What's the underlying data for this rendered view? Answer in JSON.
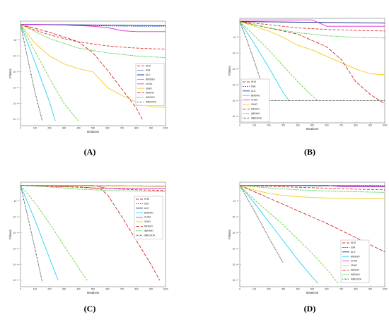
{
  "figure": {
    "panel_labels": [
      "(A)",
      "(B)",
      "(C)",
      "(D)"
    ]
  },
  "colors": {
    "HHO": "#e0312a",
    "SSA": "#6ad33a",
    "ALO": "#4466cc",
    "BMGWO": "#1f2a8c",
    "CHOA": "#dd33dd",
    "IGWO": "#f2cc1a",
    "MEHHO": "#cc2a2a",
    "IMEHHO": "#2bcf2b",
    "IMBCHOA": "#222222",
    "CYAN": "#22d4f0"
  },
  "chart_data": [
    {
      "panel": "(A)",
      "type": "line",
      "xlabel": "Iterations",
      "ylabel": "Fitness",
      "xlim": [
        0,
        1000
      ],
      "ylim_log10": [
        -320,
        10
      ],
      "y_scale": "log",
      "x_ticks": [
        "0",
        "100",
        "200",
        "300",
        "400",
        "500",
        "600",
        "700",
        "800",
        "900",
        "1000"
      ],
      "y_ticks": [
        "10⁻⁵⁰",
        "10⁻¹⁰⁰",
        "10⁻¹⁵⁰",
        "10⁻²⁰⁰",
        "10⁻²⁵⁰",
        "10⁻³⁰⁰"
      ],
      "legend_position": "right-middle",
      "legend": [
        "HHO",
        "SSA",
        "ALO",
        "BMGWO",
        "CHOA",
        "IGWO",
        "MEHHO",
        "IMEHHO",
        "IMBCHOA"
      ],
      "series": [
        {
          "name": "HHO",
          "color_key": "HHO",
          "dash": "4,2",
          "x": [
            0,
            100,
            200,
            300,
            400,
            500,
            600,
            700,
            800,
            900,
            1000
          ],
          "y": [
            0,
            -18,
            -33,
            -45,
            -55,
            -62,
            -68,
            -72,
            -75,
            -77,
            -78
          ]
        },
        {
          "name": "SSA",
          "color_key": "ALO",
          "dash": "2,1",
          "x": [
            0,
            200,
            400,
            600,
            800,
            1000
          ],
          "y": [
            0,
            -1,
            -3,
            -5,
            -6,
            -6
          ]
        },
        {
          "name": "ALO",
          "color_key": "BMGWO",
          "dash": "",
          "x": [
            0,
            1000
          ],
          "y": [
            0,
            -4
          ]
        },
        {
          "name": "CHOA",
          "color_key": "CHOA",
          "dash": "",
          "x": [
            0,
            300,
            500,
            600,
            700,
            800,
            1000
          ],
          "y": [
            0,
            -2,
            -6,
            -10,
            -20,
            -23,
            -23
          ]
        },
        {
          "name": "IGWO",
          "color_key": "IGWO",
          "dash": "",
          "x": [
            0,
            100,
            200,
            300,
            400,
            500,
            600,
            700,
            800,
            900,
            1000
          ],
          "y": [
            0,
            -60,
            -100,
            -125,
            -140,
            -150,
            -200,
            -225,
            -245,
            -260,
            -262
          ]
        },
        {
          "name": "MEHHO",
          "color_key": "MEHHO",
          "dash": "5,2",
          "x": [
            0,
            200,
            400,
            500,
            600,
            700,
            800,
            840
          ],
          "y": [
            0,
            -25,
            -55,
            -90,
            -145,
            -205,
            -265,
            -300
          ]
        },
        {
          "name": "IMEHHO",
          "color_key": "IMEHHO",
          "dash": "1.5,1",
          "x": [
            0,
            200,
            400,
            600,
            800,
            1000
          ],
          "y": [
            0,
            -45,
            -75,
            -90,
            -100,
            -105
          ]
        },
        {
          "name": "CYAN",
          "color_key": "CYAN",
          "dash": "",
          "x": [
            0,
            100,
            200,
            240
          ],
          "y": [
            0,
            -120,
            -245,
            -305
          ]
        },
        {
          "name": "IMBCHOA",
          "color_key": "IMBCHOA",
          "dash": "1,1",
          "x": [
            0,
            50,
            100,
            150
          ],
          "y": [
            0,
            -110,
            -215,
            -305
          ]
        },
        {
          "name": "GREEN",
          "color_key": "SSA",
          "dash": "3,1.5",
          "x": [
            0,
            100,
            200,
            300,
            400
          ],
          "y": [
            0,
            -85,
            -170,
            -250,
            -305
          ]
        }
      ]
    },
    {
      "panel": "(B)",
      "type": "line",
      "xlabel": "Iterations",
      "ylabel": "Fitness",
      "xlim": [
        0,
        1000
      ],
      "ylim_log10": [
        -320,
        10
      ],
      "y_scale": "log",
      "x_ticks": [
        "0",
        "100",
        "200",
        "300",
        "400",
        "500",
        "600",
        "700",
        "800",
        "900",
        "1000"
      ],
      "y_ticks": [
        "10⁻⁵⁰",
        "10⁻¹⁰⁰",
        "10⁻¹⁵⁰",
        "10⁻²⁰⁰",
        "10⁻²⁵⁰",
        "10⁻³⁰⁰"
      ],
      "legend_position": "bottom-left",
      "legend": [
        "HHO",
        "SSA",
        "ALO",
        "BMGWO",
        "CHOA",
        "IGWO",
        "MEHHO",
        "IMEHHO",
        "IMBCHOA"
      ],
      "series": [
        {
          "name": "HHO",
          "color_key": "HHO",
          "dash": "4,2",
          "x": [
            0,
            200,
            400,
            600,
            800,
            1000
          ],
          "y": [
            0,
            -10,
            -20,
            -25,
            -28,
            -30
          ]
        },
        {
          "name": "SSA",
          "color_key": "ALO",
          "dash": "2,1",
          "x": [
            0,
            1000
          ],
          "y": [
            0,
            -5
          ]
        },
        {
          "name": "ALO",
          "color_key": "BMGWO",
          "dash": "",
          "x": [
            0,
            1000
          ],
          "y": [
            0,
            -5
          ]
        },
        {
          "name": "CHOA",
          "color_key": "CHOA",
          "dash": "",
          "x": [
            0,
            500,
            600,
            1000
          ],
          "y": [
            5,
            5,
            -15,
            -15
          ]
        },
        {
          "name": "IGWO",
          "color_key": "IGWO",
          "dash": "",
          "x": [
            0,
            100,
            200,
            300,
            400,
            500,
            600,
            700,
            800,
            900,
            1000
          ],
          "y": [
            0,
            -15,
            -30,
            -50,
            -75,
            -90,
            -110,
            -130,
            -150,
            -165,
            -168
          ]
        },
        {
          "name": "MEHHO",
          "color_key": "MEHHO",
          "dash": "5,2",
          "x": [
            0,
            200,
            400,
            600,
            700,
            800,
            900,
            1000
          ],
          "y": [
            0,
            -20,
            -40,
            -80,
            -120,
            -190,
            -230,
            -260
          ]
        },
        {
          "name": "IMEHHO",
          "color_key": "IMEHHO",
          "dash": "1.5,1",
          "x": [
            0,
            200,
            400,
            600,
            800,
            1000
          ],
          "y": [
            0,
            -20,
            -35,
            -45,
            -50,
            -52
          ]
        },
        {
          "name": "CYAN",
          "color_key": "CYAN",
          "dash": "",
          "x": [
            0,
            100,
            200,
            300,
            340
          ],
          "y": [
            0,
            -70,
            -145,
            -225,
            -250
          ]
        },
        {
          "name": "IMBCHOA",
          "color_key": "IMBCHOA",
          "dash": "1,1",
          "x": [
            0,
            50,
            100,
            150,
            190,
            1000
          ],
          "y": [
            0,
            -60,
            -125,
            -195,
            -250,
            -250
          ]
        },
        {
          "name": "GREEN",
          "color_key": "SSA",
          "dash": "3,1.5",
          "x": [
            0,
            100,
            200,
            300,
            400,
            500,
            540
          ],
          "y": [
            0,
            -45,
            -90,
            -140,
            -190,
            -235,
            -250
          ]
        }
      ]
    },
    {
      "panel": "(C)",
      "type": "line",
      "xlabel": "Iterations",
      "ylabel": "Fitness",
      "xlim": [
        0,
        1000
      ],
      "ylim_log10": [
        -320,
        10
      ],
      "y_scale": "log",
      "x_ticks": [
        "0",
        "100",
        "200",
        "300",
        "400",
        "500",
        "600",
        "700",
        "800",
        "900",
        "1000"
      ],
      "y_ticks": [
        "10⁻⁵⁰",
        "10⁻¹⁰⁰",
        "10⁻¹⁵⁰",
        "10⁻²⁰⁰",
        "10⁻²⁵⁰",
        "10⁻³⁰⁰"
      ],
      "legend_position": "top-right",
      "legend": [
        "HHO",
        "SSA",
        "ALO",
        "BMGWO",
        "CHOA",
        "IGWO",
        "MEHHO",
        "IMEHHO",
        "IMBCHOA"
      ],
      "series": [
        {
          "name": "HHO",
          "color_key": "HHO",
          "dash": "4,2",
          "x": [
            0,
            200,
            400,
            600,
            800,
            1000
          ],
          "y": [
            0,
            -3,
            -6,
            -10,
            -14,
            -16
          ]
        },
        {
          "name": "SSA",
          "color_key": "ALO",
          "dash": "2,1",
          "x": [
            0,
            1000
          ],
          "y": [
            0,
            -2
          ]
        },
        {
          "name": "ALO",
          "color_key": "BMGWO",
          "dash": "",
          "x": [
            0,
            1000
          ],
          "y": [
            0,
            -3
          ]
        },
        {
          "name": "CHOA",
          "color_key": "CHOA",
          "dash": "",
          "x": [
            0,
            500,
            600,
            1000
          ],
          "y": [
            0,
            0,
            -10,
            -10
          ]
        },
        {
          "name": "IGWO",
          "color_key": "IGWO",
          "dash": "",
          "x": [
            0,
            1000
          ],
          "y": [
            0,
            -3
          ]
        },
        {
          "name": "MEHHO",
          "color_key": "MEHHO",
          "dash": "5,2",
          "x": [
            0,
            200,
            400,
            550,
            600,
            700,
            800,
            900,
            960
          ],
          "y": [
            0,
            -2,
            -5,
            -10,
            -30,
            -100,
            -175,
            -250,
            -300
          ]
        },
        {
          "name": "IMEHHO",
          "color_key": "IMEHHO",
          "dash": "1.5,1",
          "x": [
            0,
            200,
            400,
            600,
            800,
            1000
          ],
          "y": [
            0,
            -5,
            -12,
            -16,
            -18,
            -20
          ]
        },
        {
          "name": "CYAN",
          "color_key": "CYAN",
          "dash": "",
          "x": [
            0,
            100,
            200,
            260
          ],
          "y": [
            0,
            -110,
            -230,
            -300
          ]
        },
        {
          "name": "IMBCHOA",
          "color_key": "IMBCHOA",
          "dash": "1,1",
          "x": [
            0,
            50,
            100,
            150
          ],
          "y": [
            0,
            -100,
            -200,
            -305
          ]
        },
        {
          "name": "GREEN",
          "color_key": "SSA",
          "dash": "3,1.5",
          "x": [
            0,
            100,
            200,
            300,
            400,
            460
          ],
          "y": [
            0,
            -55,
            -120,
            -190,
            -260,
            -300
          ]
        }
      ]
    },
    {
      "panel": "(D)",
      "type": "line",
      "xlabel": "Iterations",
      "ylabel": "Fitness",
      "xlim": [
        0,
        1000
      ],
      "ylim_log10": [
        -320,
        10
      ],
      "y_scale": "log",
      "x_ticks": [
        "0",
        "100",
        "200",
        "300",
        "400",
        "500",
        "600",
        "700",
        "800",
        "900",
        "1000"
      ],
      "y_ticks": [
        "10⁻⁵⁰",
        "10⁻¹⁰⁰",
        "10⁻¹⁵⁰",
        "10⁻²⁰⁰",
        "10⁻²⁵⁰",
        "10⁻³⁰⁰"
      ],
      "legend_position": "bottom-right",
      "legend": [
        "HHO",
        "SSA",
        "ALO",
        "BMGWO",
        "CHOA",
        "IGWO",
        "MEHHO",
        "IMEHHO",
        "IMBCHOA"
      ],
      "series": [
        {
          "name": "HHO",
          "color_key": "HHO",
          "dash": "4,2",
          "x": [
            0,
            200,
            400,
            600,
            800,
            1000
          ],
          "y": [
            0,
            -3,
            -6,
            -9,
            -12,
            -14
          ]
        },
        {
          "name": "SSA",
          "color_key": "ALO",
          "dash": "2,1",
          "x": [
            0,
            1000
          ],
          "y": [
            0,
            -1
          ]
        },
        {
          "name": "ALO",
          "color_key": "BMGWO",
          "dash": "",
          "x": [
            0,
            1000
          ],
          "y": [
            0,
            -2
          ]
        },
        {
          "name": "CHOA",
          "color_key": "CHOA",
          "dash": "",
          "x": [
            0,
            600,
            700,
            1000
          ],
          "y": [
            0,
            0,
            -4,
            -4
          ]
        },
        {
          "name": "IGWO",
          "color_key": "IGWO",
          "dash": "",
          "x": [
            0,
            100,
            200,
            300,
            400,
            600,
            800,
            1000
          ],
          "y": [
            0,
            -15,
            -25,
            -32,
            -36,
            -40,
            -42,
            -42
          ]
        },
        {
          "name": "MEHHO",
          "color_key": "MEHHO",
          "dash": "5,2",
          "x": [
            0,
            200,
            400,
            600,
            800,
            1000
          ],
          "y": [
            0,
            -40,
            -80,
            -120,
            -165,
            -210
          ]
        },
        {
          "name": "IMEHHO",
          "color_key": "IMEHHO",
          "dash": "1.5,1",
          "x": [
            0,
            200,
            400,
            600,
            800,
            1000
          ],
          "y": [
            0,
            -8,
            -14,
            -18,
            -20,
            -22
          ]
        },
        {
          "name": "CYAN",
          "color_key": "CYAN",
          "dash": "",
          "x": [
            0,
            100,
            200,
            300,
            400,
            500,
            540
          ],
          "y": [
            0,
            -55,
            -115,
            -175,
            -235,
            -290,
            -310
          ]
        },
        {
          "name": "IMBCHOA",
          "color_key": "IMBCHOA",
          "dash": "1,1",
          "x": [
            0,
            100,
            200,
            300
          ],
          "y": [
            0,
            -80,
            -165,
            -245
          ]
        },
        {
          "name": "GREEN",
          "color_key": "SSA",
          "dash": "3,1.5",
          "x": [
            0,
            100,
            200,
            300,
            400,
            500,
            600,
            680
          ],
          "y": [
            0,
            -45,
            -85,
            -125,
            -170,
            -215,
            -265,
            -310
          ]
        }
      ]
    }
  ]
}
